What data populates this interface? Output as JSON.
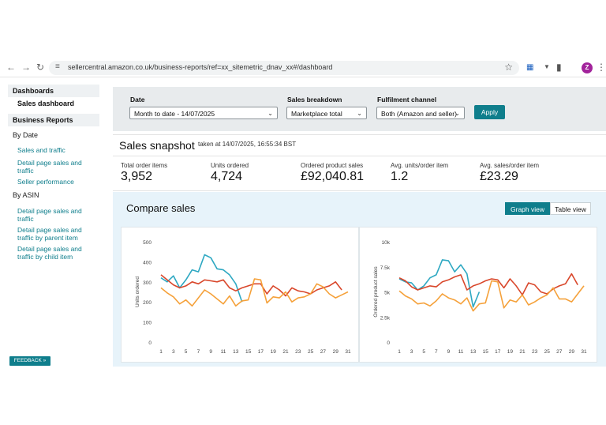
{
  "browser": {
    "url": "sellercentral.amazon.co.uk/business-reports/ref=xx_sitemetric_dnav_xx#/dashboard",
    "avatar_letter": "Z"
  },
  "sidebar": {
    "dashboards_header": "Dashboards",
    "sales_dashboard": "Sales dashboard",
    "reports_header": "Business Reports",
    "by_date": "By Date",
    "sales_and_traffic": "Sales and traffic",
    "detail_page_sales_traffic": "Detail page sales and traffic",
    "seller_performance": "Seller performance",
    "by_asin": "By ASIN",
    "asin_detail_page": "Detail page sales and traffic",
    "asin_by_parent": "Detail page sales and traffic by parent item",
    "asin_by_child": "Detail page sales and traffic by child item",
    "feedback": "FEEDBACK"
  },
  "filters": {
    "date_label": "Date",
    "date_value": "Month to date - 14/07/2025",
    "breakdown_label": "Sales breakdown",
    "breakdown_value": "Marketplace total",
    "fulfilment_label": "Fulfilment channel",
    "fulfilment_value": "Both (Amazon and seller)",
    "apply": "Apply"
  },
  "snapshot": {
    "title": "Sales snapshot",
    "taken_at": "taken at 14/07/2025, 16:55:34 BST",
    "metrics": [
      {
        "label": "Total order items",
        "value": "3,952"
      },
      {
        "label": "Units ordered",
        "value": "4,724"
      },
      {
        "label": "Ordered product sales",
        "value": "£92,040.81"
      },
      {
        "label": "Avg. units/order item",
        "value": "1.2"
      },
      {
        "label": "Avg. sales/order item",
        "value": "£23.29"
      }
    ]
  },
  "compare": {
    "title": "Compare sales",
    "graph_view": "Graph view",
    "table_view": "Table view"
  },
  "colors": {
    "teal": "#2ea8c2",
    "red": "#d9472b",
    "orange": "#f5a13a"
  },
  "chart_data": [
    {
      "type": "line",
      "ylabel": "Units ordered",
      "ylim": [
        0,
        500
      ],
      "yticks": [
        0,
        100,
        200,
        300,
        400,
        500
      ],
      "xticks": [
        1,
        3,
        5,
        7,
        9,
        11,
        13,
        15,
        17,
        19,
        21,
        23,
        25,
        27,
        29,
        31
      ],
      "series": [
        {
          "color": "teal",
          "x": [
            1,
            2,
            3,
            4,
            5,
            6,
            7,
            8,
            9,
            10,
            11,
            12,
            13,
            14
          ],
          "values": [
            320,
            300,
            330,
            270,
            310,
            360,
            350,
            435,
            420,
            365,
            360,
            335,
            290,
            200
          ]
        },
        {
          "color": "red",
          "x": [
            1,
            2,
            3,
            4,
            5,
            6,
            7,
            8,
            9,
            10,
            11,
            12,
            13,
            14,
            15,
            16,
            17,
            18,
            19,
            20,
            21,
            22,
            23,
            24,
            25,
            26,
            27,
            28,
            29,
            30
          ],
          "values": [
            335,
            310,
            285,
            270,
            280,
            300,
            290,
            310,
            305,
            300,
            310,
            270,
            255,
            270,
            280,
            290,
            290,
            240,
            280,
            260,
            230,
            270,
            255,
            250,
            240,
            260,
            270,
            280,
            300,
            260
          ]
        },
        {
          "color": "orange",
          "x": [
            1,
            2,
            3,
            4,
            5,
            6,
            7,
            8,
            9,
            10,
            11,
            12,
            13,
            14,
            15,
            16,
            17,
            18,
            19,
            20,
            21,
            22,
            23,
            24,
            25,
            26,
            27,
            28,
            29,
            30,
            31
          ],
          "values": [
            270,
            245,
            225,
            190,
            210,
            180,
            220,
            260,
            240,
            215,
            190,
            230,
            180,
            205,
            210,
            315,
            310,
            195,
            225,
            220,
            250,
            200,
            220,
            225,
            240,
            290,
            275,
            240,
            220,
            235,
            250
          ]
        }
      ]
    },
    {
      "type": "line",
      "ylabel": "Ordered product sales",
      "ylim": [
        0,
        10000
      ],
      "yticks": [
        0,
        2500,
        5000,
        7500,
        10000
      ],
      "yticklabels": [
        "0",
        "2.5k",
        "5k",
        "7.5k",
        "10k"
      ],
      "xticks": [
        1,
        3,
        5,
        7,
        9,
        11,
        13,
        15,
        17,
        19,
        21,
        23,
        25,
        27,
        29,
        31
      ],
      "series": [
        {
          "color": "teal",
          "x": [
            1,
            2,
            3,
            4,
            5,
            6,
            7,
            8,
            9,
            10,
            11,
            12,
            13,
            14
          ],
          "values": [
            6300,
            6000,
            5900,
            5200,
            5600,
            6400,
            6700,
            8200,
            8100,
            7000,
            7700,
            6800,
            3500,
            5000
          ]
        },
        {
          "color": "red",
          "x": [
            1,
            2,
            3,
            4,
            5,
            6,
            7,
            8,
            9,
            10,
            11,
            12,
            13,
            14,
            15,
            16,
            17,
            18,
            19,
            20,
            21,
            22,
            23,
            24,
            25,
            26,
            27,
            28,
            29,
            30
          ],
          "values": [
            6400,
            6100,
            5500,
            5200,
            5400,
            5600,
            5500,
            6000,
            6200,
            6500,
            6700,
            5200,
            5600,
            5800,
            6100,
            6300,
            6200,
            5400,
            6300,
            5600,
            4700,
            5900,
            5700,
            5000,
            4800,
            5300,
            5600,
            5800,
            6800,
            5700
          ]
        },
        {
          "color": "orange",
          "x": [
            1,
            2,
            3,
            4,
            5,
            6,
            7,
            8,
            9,
            10,
            11,
            12,
            13,
            14,
            15,
            16,
            17,
            18,
            19,
            20,
            21,
            22,
            23,
            24,
            25,
            26,
            27,
            28,
            29,
            30,
            31
          ],
          "values": [
            5100,
            4600,
            4300,
            3800,
            3900,
            3600,
            4100,
            4800,
            4400,
            4200,
            3800,
            4400,
            3100,
            3800,
            3900,
            6100,
            6000,
            3400,
            4200,
            4000,
            4700,
            3700,
            4000,
            4400,
            4700,
            5400,
            4300,
            4300,
            4000,
            4800,
            5600
          ]
        }
      ]
    }
  ]
}
